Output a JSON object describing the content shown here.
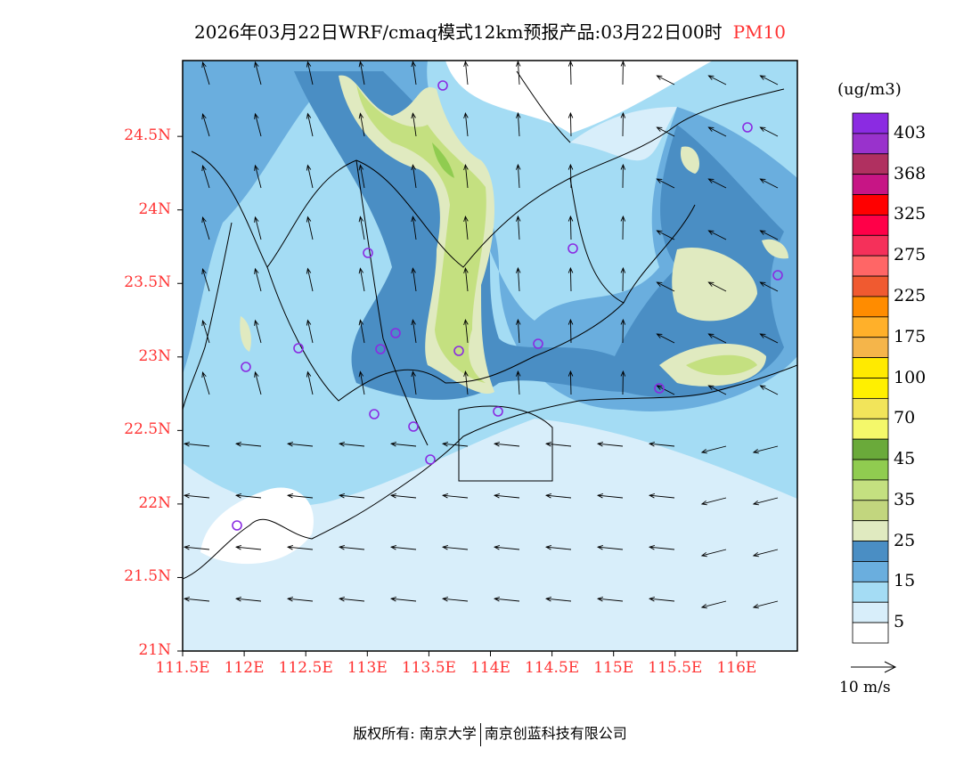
{
  "title": {
    "main": "2026年03月22日WRF/cmaq模式12km预报产品:03月22日00时",
    "species": "PM10"
  },
  "axes": {
    "lat_labels": [
      "24.5N",
      "24N",
      "23.5N",
      "23N",
      "22.5N",
      "22N",
      "21.5N",
      "21N"
    ],
    "lat_values": [
      24.5,
      24,
      23.5,
      23,
      22.5,
      22,
      21.5,
      21
    ],
    "lon_labels": [
      "111.5E",
      "112E",
      "112.5E",
      "113E",
      "113.5E",
      "114E",
      "114.5E",
      "115E",
      "115.5E",
      "116E"
    ],
    "lon_values": [
      111.5,
      112,
      112.5,
      113,
      113.5,
      114,
      114.5,
      115,
      115.5,
      116
    ]
  },
  "colorbar": {
    "unit": "(ug/m3)",
    "colors": [
      "#8b2be2",
      "#9932cc",
      "#b03060",
      "#c71585",
      "#ff0000",
      "#ff0048",
      "#f5305a",
      "#ff6666",
      "#f05a30",
      "#ff8c00",
      "#ffb02a",
      "#f5b54a",
      "#ffea00",
      "#fff000",
      "#f2e45a",
      "#f4f86a",
      "#6aaa3a",
      "#90cc50",
      "#c4e080",
      "#c2d67e",
      "#e0eac0",
      "#4a8ec4",
      "#6aaede",
      "#a4dcf4",
      "#d8eefa",
      "#ffffff"
    ],
    "labels": [
      "403",
      "368",
      "325",
      "275",
      "225",
      "175",
      "100",
      "70",
      "45",
      "35",
      "25",
      "15",
      "5"
    ]
  },
  "wind_legend": {
    "label": "10 m/s"
  },
  "footer": {
    "left": "版权所有: 南京大学",
    "right": "南京创蓝科技有限公司"
  }
}
